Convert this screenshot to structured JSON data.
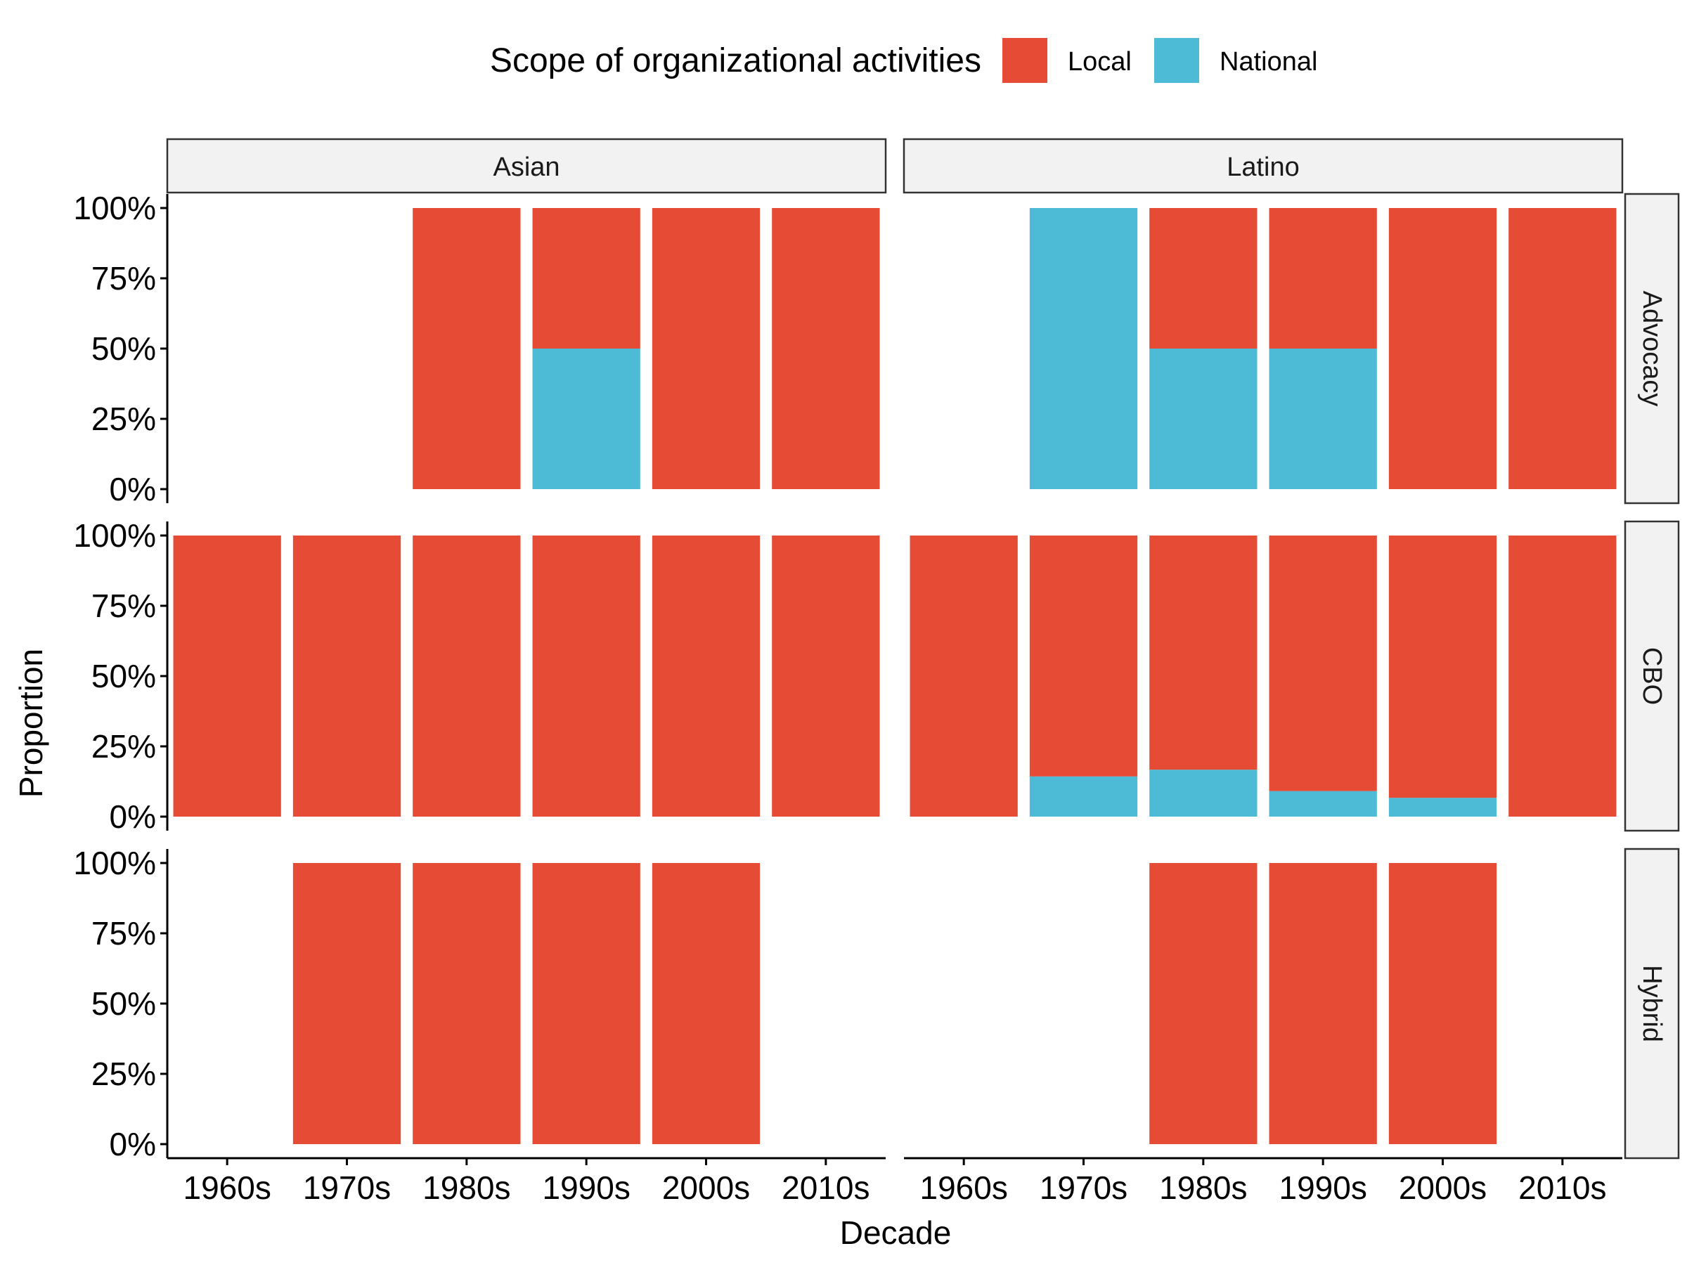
{
  "chart_data": {
    "type": "bar",
    "stacked": true,
    "faceted": true,
    "x": [
      "1960s",
      "1970s",
      "1980s",
      "1990s",
      "2000s",
      "2010s"
    ],
    "xlabel": "Decade",
    "ylabel": "Proportion",
    "ylim": [
      0,
      1
    ],
    "y_ticks": [
      "0%",
      "25%",
      "50%",
      "75%",
      "100%"
    ],
    "grid": false,
    "legend": {
      "title": "Scope of organizational activities",
      "position": "top",
      "entries": [
        {
          "name": "Local",
          "color": "#E64B35"
        },
        {
          "name": "National",
          "color": "#4DBBD5"
        }
      ]
    },
    "columns": [
      "Asian",
      "Latino"
    ],
    "rows": [
      "Advocacy",
      "CBO",
      "Hybrid"
    ],
    "panels": [
      {
        "column": "Asian",
        "row": "Advocacy",
        "local": [
          null,
          null,
          1.0,
          0.5,
          1.0,
          1.0
        ],
        "national": [
          null,
          null,
          0.0,
          0.5,
          0.0,
          0.0
        ]
      },
      {
        "column": "Latino",
        "row": "Advocacy",
        "local": [
          null,
          0.0,
          0.5,
          0.5,
          1.0,
          1.0
        ],
        "national": [
          null,
          1.0,
          0.5,
          0.5,
          0.0,
          0.0
        ]
      },
      {
        "column": "Asian",
        "row": "CBO",
        "local": [
          1.0,
          1.0,
          1.0,
          1.0,
          1.0,
          1.0
        ],
        "national": [
          0.0,
          0.0,
          0.0,
          0.0,
          0.0,
          0.0
        ]
      },
      {
        "column": "Latino",
        "row": "CBO",
        "local": [
          1.0,
          0.857,
          0.833,
          0.909,
          0.933,
          1.0
        ],
        "national": [
          0.0,
          0.143,
          0.167,
          0.091,
          0.067,
          0.0
        ]
      },
      {
        "column": "Asian",
        "row": "Hybrid",
        "local": [
          null,
          1.0,
          1.0,
          1.0,
          1.0,
          null
        ],
        "national": [
          null,
          0.0,
          0.0,
          0.0,
          0.0,
          null
        ]
      },
      {
        "column": "Latino",
        "row": "Hybrid",
        "local": [
          null,
          null,
          1.0,
          1.0,
          1.0,
          null
        ],
        "national": [
          null,
          null,
          0.0,
          0.0,
          0.0,
          null
        ]
      }
    ]
  }
}
